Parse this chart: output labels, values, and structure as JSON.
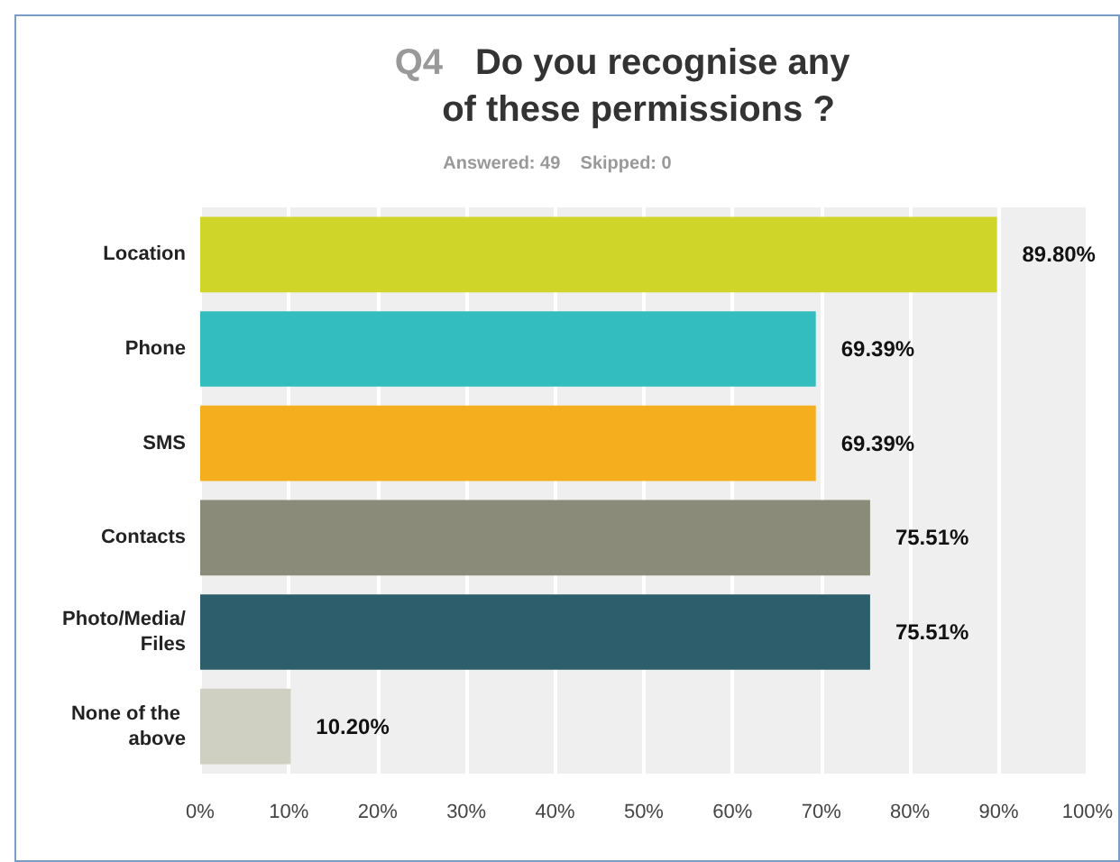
{
  "chart_data": {
    "type": "bar",
    "orientation": "horizontal",
    "title": "Q4 Do you recognise any of these permissions ?",
    "subtitle": "Answered: 49    Skipped: 0",
    "categories": [
      "Location",
      "Phone",
      "SMS",
      "Contacts",
      "Photo/Media/Files",
      "None of the above"
    ],
    "values": [
      89.8,
      69.39,
      69.39,
      75.51,
      75.51,
      10.2
    ],
    "colors": [
      "#cfd629",
      "#34bdbf",
      "#f5ae1e",
      "#8a8b79",
      "#2c5f6b",
      "#cfcfc2"
    ],
    "value_labels": [
      "89.80%",
      "69.39%",
      "69.39%",
      "75.51%",
      "75.51%",
      "10.20%"
    ],
    "xlim": [
      0,
      100
    ],
    "xticks": [
      {
        "value": 0,
        "label": "0%"
      },
      {
        "value": 10,
        "label": "10%"
      },
      {
        "value": 20,
        "label": "20%"
      },
      {
        "value": 30,
        "label": "30%"
      },
      {
        "value": 40,
        "label": "40%"
      },
      {
        "value": 50,
        "label": "50%"
      },
      {
        "value": 60,
        "label": "60%"
      },
      {
        "value": 70,
        "label": "70%"
      },
      {
        "value": 80,
        "label": "80%"
      },
      {
        "value": 90,
        "label": "90%"
      },
      {
        "value": 100,
        "label": "100%"
      }
    ],
    "grid": "x"
  }
}
